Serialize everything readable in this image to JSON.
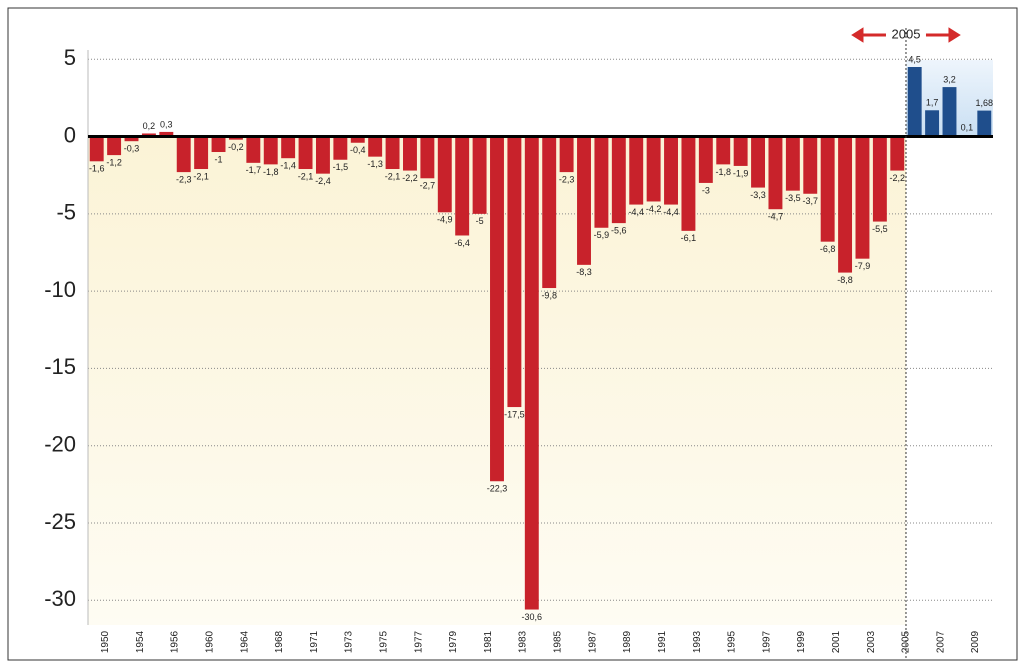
{
  "chart_data": {
    "type": "bar",
    "annotation": "2005",
    "categories": [
      "1950",
      null,
      "1954",
      null,
      "1956",
      null,
      "1960",
      null,
      "1964",
      null,
      "1968",
      null,
      "1971",
      null,
      "1973",
      null,
      "1975",
      null,
      "1977",
      null,
      "1979",
      null,
      "1981",
      null,
      "1983",
      null,
      "1985",
      null,
      "1987",
      null,
      "1989",
      null,
      "1991",
      null,
      "1993",
      null,
      "1995",
      null,
      "1997",
      null,
      "1999",
      null,
      "2001",
      null,
      "2003",
      null,
      "2005",
      null,
      "2007",
      null,
      "2009",
      null
    ],
    "values": [
      -1.6,
      -1.2,
      -0.3,
      0.2,
      0.3,
      -2.3,
      -2.1,
      -1,
      -0.2,
      -1.7,
      -1.8,
      -1.4,
      -2.1,
      -2.4,
      -1.5,
      -0.4,
      -1.3,
      -2.1,
      -2.2,
      -2.7,
      -4.9,
      -6.4,
      -5,
      -22.3,
      -17.5,
      -30.6,
      -9.8,
      -2.3,
      -8.3,
      -5.9,
      -5.6,
      -4.4,
      -4.2,
      -4.4,
      -6.1,
      -3,
      -1.8,
      -1.9,
      -3.3,
      -4.7,
      -3.5,
      -3.7,
      -6.8,
      -8.8,
      -7.9,
      -5.5,
      -2.2,
      4.5,
      1.7,
      3.2,
      0.1,
      1.68
    ],
    "value_labels": [
      "-1,6",
      "-1,2",
      "-0,3",
      "0,2",
      "0,3",
      "-2,3",
      "-2,1",
      "-1",
      "-0,2",
      "-1,7",
      "-1,8",
      "-1,4",
      "-2,1",
      "-2,4",
      "-1,5",
      "-0,4",
      "-1,3",
      "-2,1",
      "-2,2",
      "-2,7",
      "-4,9",
      "-6,4",
      "-5",
      "-22,3",
      "-17,5",
      "-30,6",
      "-9,8",
      "-2,3",
      "-8,3",
      "-5,9",
      "-5,6",
      "-4,4",
      "-4,2",
      "-4,4",
      "-6,1",
      "-3",
      "-1,8",
      "-1,9",
      "-3,3",
      "-4,7",
      "-3,5",
      "-3,7",
      "-6,8",
      "-8,8",
      "-7,9",
      "-5,5",
      "-2,2",
      "4,5",
      "1,7",
      "3,2",
      "0,1",
      "1,68"
    ],
    "colors": [
      "#c8222b",
      "#c8222b",
      "#c8222b",
      "#c8222b",
      "#c8222b",
      "#c8222b",
      "#c8222b",
      "#c8222b",
      "#c8222b",
      "#c8222b",
      "#c8222b",
      "#c8222b",
      "#c8222b",
      "#c8222b",
      "#c8222b",
      "#c8222b",
      "#c8222b",
      "#c8222b",
      "#c8222b",
      "#c8222b",
      "#c8222b",
      "#c8222b",
      "#c8222b",
      "#c8222b",
      "#c8222b",
      "#c8222b",
      "#c8222b",
      "#c8222b",
      "#c8222b",
      "#c8222b",
      "#c8222b",
      "#c8222b",
      "#c8222b",
      "#c8222b",
      "#c8222b",
      "#c8222b",
      "#c8222b",
      "#c8222b",
      "#c8222b",
      "#c8222b",
      "#c8222b",
      "#c8222b",
      "#c8222b",
      "#c8222b",
      "#c8222b",
      "#c8222b",
      "#c8222b",
      "#1f4e8c",
      "#1f4e8c",
      "#1f4e8c",
      "#1f4e8c",
      "#1f4e8c"
    ],
    "ylim": [
      -31.6,
      5.6
    ],
    "yticks": [
      5,
      0,
      -5,
      -10,
      -15,
      -20,
      -25,
      -30
    ],
    "grid": true
  }
}
